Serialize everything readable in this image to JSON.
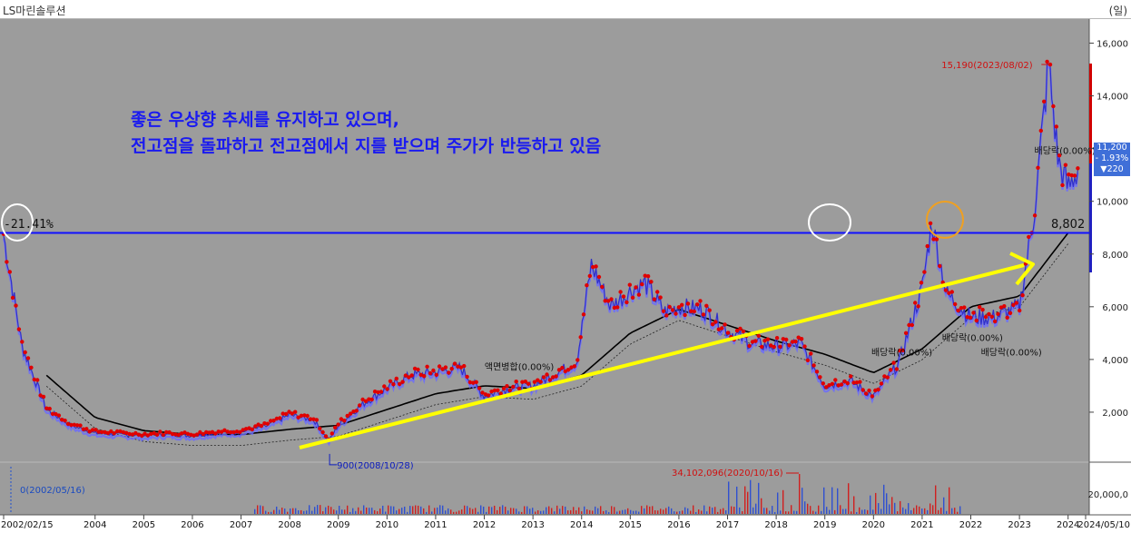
{
  "window": {
    "title": "LS마린솔루션",
    "unit": "(일)"
  },
  "headline": {
    "line1": "좋은 우상향 추세를 유지하고 있으며,",
    "line2": "전고점을 돌파하고 전고점에서 지를 받으며 주가가 반등하고 있음"
  },
  "price_tag": {
    "price": "11,200",
    "change_pct": "- 1.93%",
    "change_abs": "▼220"
  },
  "reference_line": {
    "value": 8802,
    "label": "8,802",
    "pct_label": "-21.41%"
  },
  "colors": {
    "candles": "#e00000",
    "background": "#9c9c9c",
    "ref_line": "#1010ff",
    "trend_arrow": "#ffff00",
    "ma_long": "#000000",
    "highlight_circle": "#ffffff",
    "current_circle": "#f0a020"
  },
  "chart_data": {
    "type": "line",
    "title": "",
    "xlabel": "",
    "ylabel": "",
    "x_ticks": [
      "2002/02/15",
      "2004",
      "2005",
      "2006",
      "2007",
      "2008",
      "2009",
      "2010",
      "2011",
      "2012",
      "2013",
      "2014",
      "2015",
      "2016",
      "2017",
      "2018",
      "2019",
      "2020",
      "2021",
      "2022",
      "2023",
      "2024",
      "2024/05/10"
    ],
    "y_ticks": [
      "2,000",
      "4,000",
      "6,000",
      "8,000",
      "10,000",
      "12,000",
      "14,000",
      "16,000"
    ],
    "ylim": [
      0,
      16500
    ],
    "series": [
      {
        "x": [
          2002.12,
          2002.5,
          2003.0,
          2003.5,
          2004.0,
          2004.5,
          2005.0,
          2005.5,
          2006.0,
          2006.5,
          2007.0,
          2007.5,
          2008.0,
          2008.5,
          2008.8,
          2009.0,
          2009.5,
          2010.0,
          2010.5,
          2011.0,
          2011.5,
          2012.0,
          2012.5,
          2013.0,
          2013.5,
          2013.9,
          2014.2,
          2014.6,
          2015.0,
          2015.3,
          2015.7,
          2016.0,
          2016.5,
          2017.0,
          2017.5,
          2018.0,
          2018.5,
          2019.0,
          2019.5,
          2020.0,
          2020.5,
          2021.0,
          2021.2,
          2021.5,
          2022.0,
          2022.5,
          2023.0,
          2023.3,
          2023.6,
          2023.8,
          2024.0,
          2024.2
        ],
        "values": [
          8700,
          4500,
          2100,
          1500,
          1200,
          1150,
          1100,
          1150,
          1100,
          1200,
          1250,
          1450,
          1900,
          1700,
          900,
          1500,
          2300,
          2900,
          3400,
          3500,
          3700,
          2600,
          2900,
          3000,
          3500,
          3900,
          7600,
          6000,
          6600,
          6900,
          5800,
          6000,
          5900,
          5100,
          4600,
          4500,
          4600,
          3000,
          3200,
          2600,
          3800,
          6700,
          9200,
          6500,
          5600,
          5600,
          6000,
          9500,
          15190,
          11500,
          10500,
          11200
        ]
      },
      {
        "x": [
          2003.0,
          2004.0,
          2005.0,
          2006.0,
          2007.0,
          2008.0,
          2009.0,
          2010.0,
          2011.0,
          2012.0,
          2013.0,
          2014.0,
          2015.0,
          2016.0,
          2017.0,
          2018.0,
          2019.0,
          2020.0,
          2021.0,
          2022.0,
          2023.0,
          2024.0
        ],
        "values": [
          3400,
          1800,
          1300,
          1150,
          1150,
          1350,
          1500,
          2100,
          2700,
          3000,
          2900,
          3400,
          5000,
          5900,
          5300,
          4700,
          4200,
          3500,
          4400,
          6000,
          6400,
          8800
        ]
      }
    ],
    "annotations": [
      {
        "label": "15,190(2023/08/02)",
        "x": 2023.6,
        "value": 15190
      },
      {
        "label": "900(2008/10/28)",
        "x": 2008.82,
        "value": 900
      },
      {
        "label": "액면병합(0.00%)",
        "x": 2012.1,
        "value": 3600
      },
      {
        "label": "배당락(0.00%)",
        "x": 2020.05,
        "value": 4150
      },
      {
        "label": "배당락(0.00%)",
        "x": 2021.5,
        "value": 4700
      },
      {
        "label": "배당락(0.00%)",
        "x": 2022.3,
        "value": 4150
      },
      {
        "label": "배당락(0.00%)",
        "x": 2023.4,
        "value": 11800
      }
    ],
    "volume": {
      "label_max": "34,102,096(2020/10/16)",
      "label_min": "0(2002/05/16)",
      "y_tick": "20,000,0"
    }
  }
}
